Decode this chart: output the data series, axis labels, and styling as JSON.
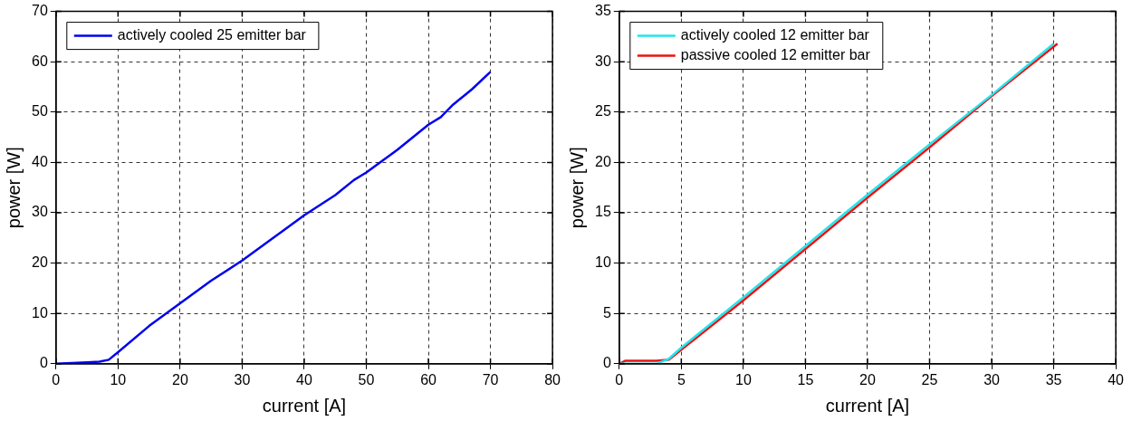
{
  "chart_data": [
    {
      "type": "line",
      "xlabel": "current [A]",
      "ylabel": "power [W]",
      "xlim": [
        0,
        80
      ],
      "xticks": [
        0,
        10,
        20,
        30,
        40,
        50,
        60,
        70,
        80
      ],
      "ylim": [
        0,
        70
      ],
      "yticks": [
        0,
        10,
        20,
        30,
        40,
        50,
        60,
        70
      ],
      "grid": true,
      "legend": "top left",
      "marker": "none",
      "line_style": "solid",
      "series": [
        {
          "name": "actively cooled 25 emitter bar",
          "color": "#0000ee",
          "x": [
            0,
            5,
            7,
            8.5,
            10,
            15,
            20,
            25,
            30,
            35,
            40,
            45,
            48,
            50,
            55,
            60,
            62,
            64,
            67,
            70
          ],
          "values": [
            0,
            0.3,
            0.4,
            0.8,
            2.3,
            7.5,
            12,
            16.5,
            20.5,
            25,
            29.5,
            33.5,
            36.5,
            38,
            42.5,
            47.5,
            49,
            51.5,
            54.5,
            58
          ]
        }
      ]
    },
    {
      "type": "line",
      "xlabel": "current [A]",
      "ylabel": "power [W]",
      "xlim": [
        0,
        40
      ],
      "xticks": [
        0,
        5,
        10,
        15,
        20,
        25,
        30,
        35,
        40
      ],
      "ylim": [
        0,
        35
      ],
      "yticks": [
        0,
        5,
        10,
        15,
        20,
        25,
        30,
        35
      ],
      "grid": true,
      "legend": "top left",
      "marker": "none",
      "line_style": "solid",
      "series": [
        {
          "name": "actively cooled 12 emitter bar",
          "color": "#22e5ee",
          "x": [
            0,
            3,
            4,
            5,
            10,
            15,
            20,
            25,
            30,
            35
          ],
          "values": [
            0,
            0,
            0.5,
            1.6,
            6.6,
            11.7,
            16.8,
            21.8,
            26.7,
            31.8
          ]
        },
        {
          "name": "passive cooled 12 emitter bar",
          "color": "#ee1111",
          "x": [
            0,
            0.5,
            3,
            4,
            5,
            10,
            15,
            20,
            25,
            30,
            35.3
          ],
          "values": [
            0,
            0.3,
            0.3,
            0.4,
            1.4,
            6.3,
            11.4,
            16.5,
            21.5,
            26.6,
            31.8
          ]
        }
      ]
    }
  ]
}
